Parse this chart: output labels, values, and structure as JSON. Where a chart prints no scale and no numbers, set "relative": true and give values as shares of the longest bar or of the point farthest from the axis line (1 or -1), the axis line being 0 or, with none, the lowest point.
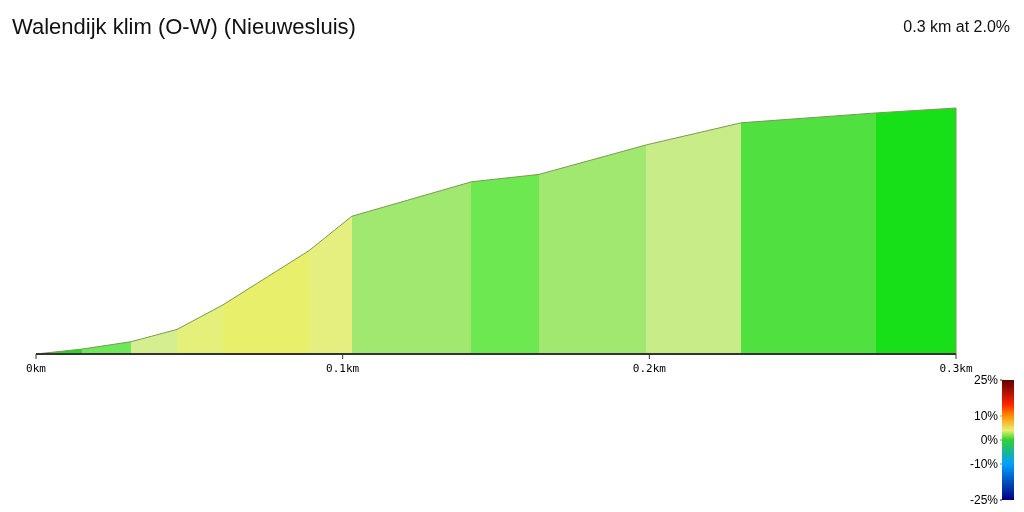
{
  "chart_data": {
    "type": "area",
    "title": "Walendijk klim (O-W) (Nieuwesluis)",
    "subtitle": "0.3 km at 2.0%",
    "relative": true,
    "x": [
      0,
      0.015,
      0.031,
      0.046,
      0.061,
      0.089,
      0.103,
      0.142,
      0.164,
      0.199,
      0.23,
      0.274,
      0.3
    ],
    "values": [
      0,
      0.02,
      0.05,
      0.1,
      0.2,
      0.42,
      0.56,
      0.7,
      0.73,
      0.85,
      0.94,
      0.98,
      1
    ],
    "colors": [
      "#22dd22",
      "#22dd22",
      "#6ee85a",
      "#d4ee90",
      "#e4f07a",
      "#e8ef6a",
      "#e4ef80",
      "#a0e870",
      "#6ee850",
      "#a0e870",
      "#c8ec88",
      "#50e040",
      "#18e018"
    ],
    "xlim": [
      0,
      0.3
    ],
    "xticks": [
      {
        "value": 0,
        "label": "0km"
      },
      {
        "value": 0.1,
        "label": "0.1km"
      },
      {
        "value": 0.2,
        "label": "0.2km"
      },
      {
        "value": 0.3,
        "label": "0.3km"
      }
    ],
    "clim": [
      -25,
      25
    ],
    "cticks": [
      {
        "value": 25,
        "label": "25%"
      },
      {
        "value": 10,
        "label": "10%"
      },
      {
        "value": 0,
        "label": "0%"
      },
      {
        "value": -10,
        "label": "-10%"
      },
      {
        "value": -25,
        "label": "-25%"
      }
    ]
  }
}
